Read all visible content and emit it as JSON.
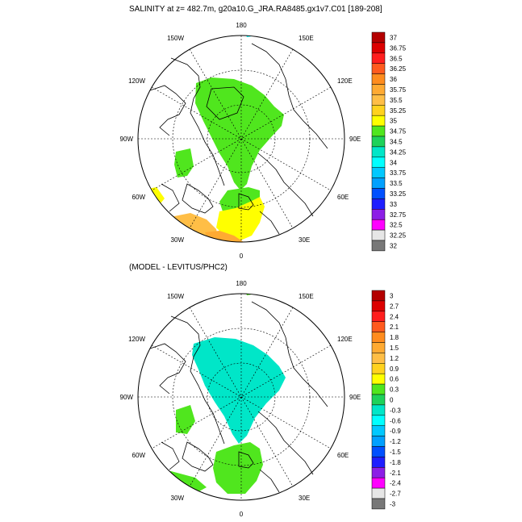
{
  "top_panel": {
    "title": "SALINITY at z= 482.7m, g20a10.G_JRA.RA8485.gx1v7.C01 [189-208]",
    "longitude_labels": {
      "top": "180",
      "bottom": "0",
      "left": "90W",
      "right": "90E",
      "upper_left": "150W",
      "upper_right": "150E",
      "mid_upper_left": "120W",
      "mid_upper_right": "120E",
      "mid_lower_left": "60W",
      "mid_lower_right": "60E",
      "lower_left": "30W",
      "lower_right": "30E"
    },
    "colorbar": {
      "labels": [
        "37",
        "36.75",
        "36.5",
        "36.25",
        "36",
        "35.75",
        "35.5",
        "35.25",
        "35",
        "34.75",
        "34.5",
        "34.25",
        "34",
        "33.75",
        "33.5",
        "33.25",
        "33",
        "32.75",
        "32.5",
        "32.25",
        "32"
      ],
      "colors": [
        "#b40000",
        "#dc0000",
        "#ff1e1e",
        "#ff5a1e",
        "#ff8c1e",
        "#ffaa32",
        "#ffbe46",
        "#ffd21e",
        "#ffff00",
        "#50e61e",
        "#1ed25a",
        "#00e6c8",
        "#00ffff",
        "#00c8ff",
        "#00a0ff",
        "#0050ff",
        "#1e1eff",
        "#8c1ee6",
        "#ff00ff",
        "#e6e6e6",
        "#787878"
      ]
    }
  },
  "bottom_panel": {
    "title": "(MODEL - LEVITUS/PHC2)",
    "longitude_labels": {
      "top": "180",
      "bottom": "0",
      "left": "90W",
      "right": "90E",
      "upper_left": "150W",
      "upper_right": "150E",
      "mid_upper_left": "120W",
      "mid_upper_right": "120E",
      "mid_lower_left": "60W",
      "mid_lower_right": "60E",
      "lower_left": "30W",
      "lower_right": "30E"
    },
    "colorbar": {
      "labels": [
        "3",
        "2.7",
        "2.4",
        "2.1",
        "1.8",
        "1.5",
        "1.2",
        "0.9",
        "0.6",
        "0.3",
        "0",
        "-0.3",
        "-0.6",
        "-0.9",
        "-1.2",
        "-1.5",
        "-1.8",
        "-2.1",
        "-2.4",
        "-2.7",
        "-3"
      ],
      "colors": [
        "#b40000",
        "#dc0000",
        "#ff1e1e",
        "#ff5a1e",
        "#ff8c1e",
        "#ffaa32",
        "#ffbe46",
        "#ffd21e",
        "#ffff00",
        "#50e61e",
        "#1ed25a",
        "#00e6c8",
        "#00ffff",
        "#00c8ff",
        "#00a0ff",
        "#0050ff",
        "#1e1eff",
        "#8c1ee6",
        "#ff00ff",
        "#e6e6e6",
        "#787878"
      ]
    }
  }
}
